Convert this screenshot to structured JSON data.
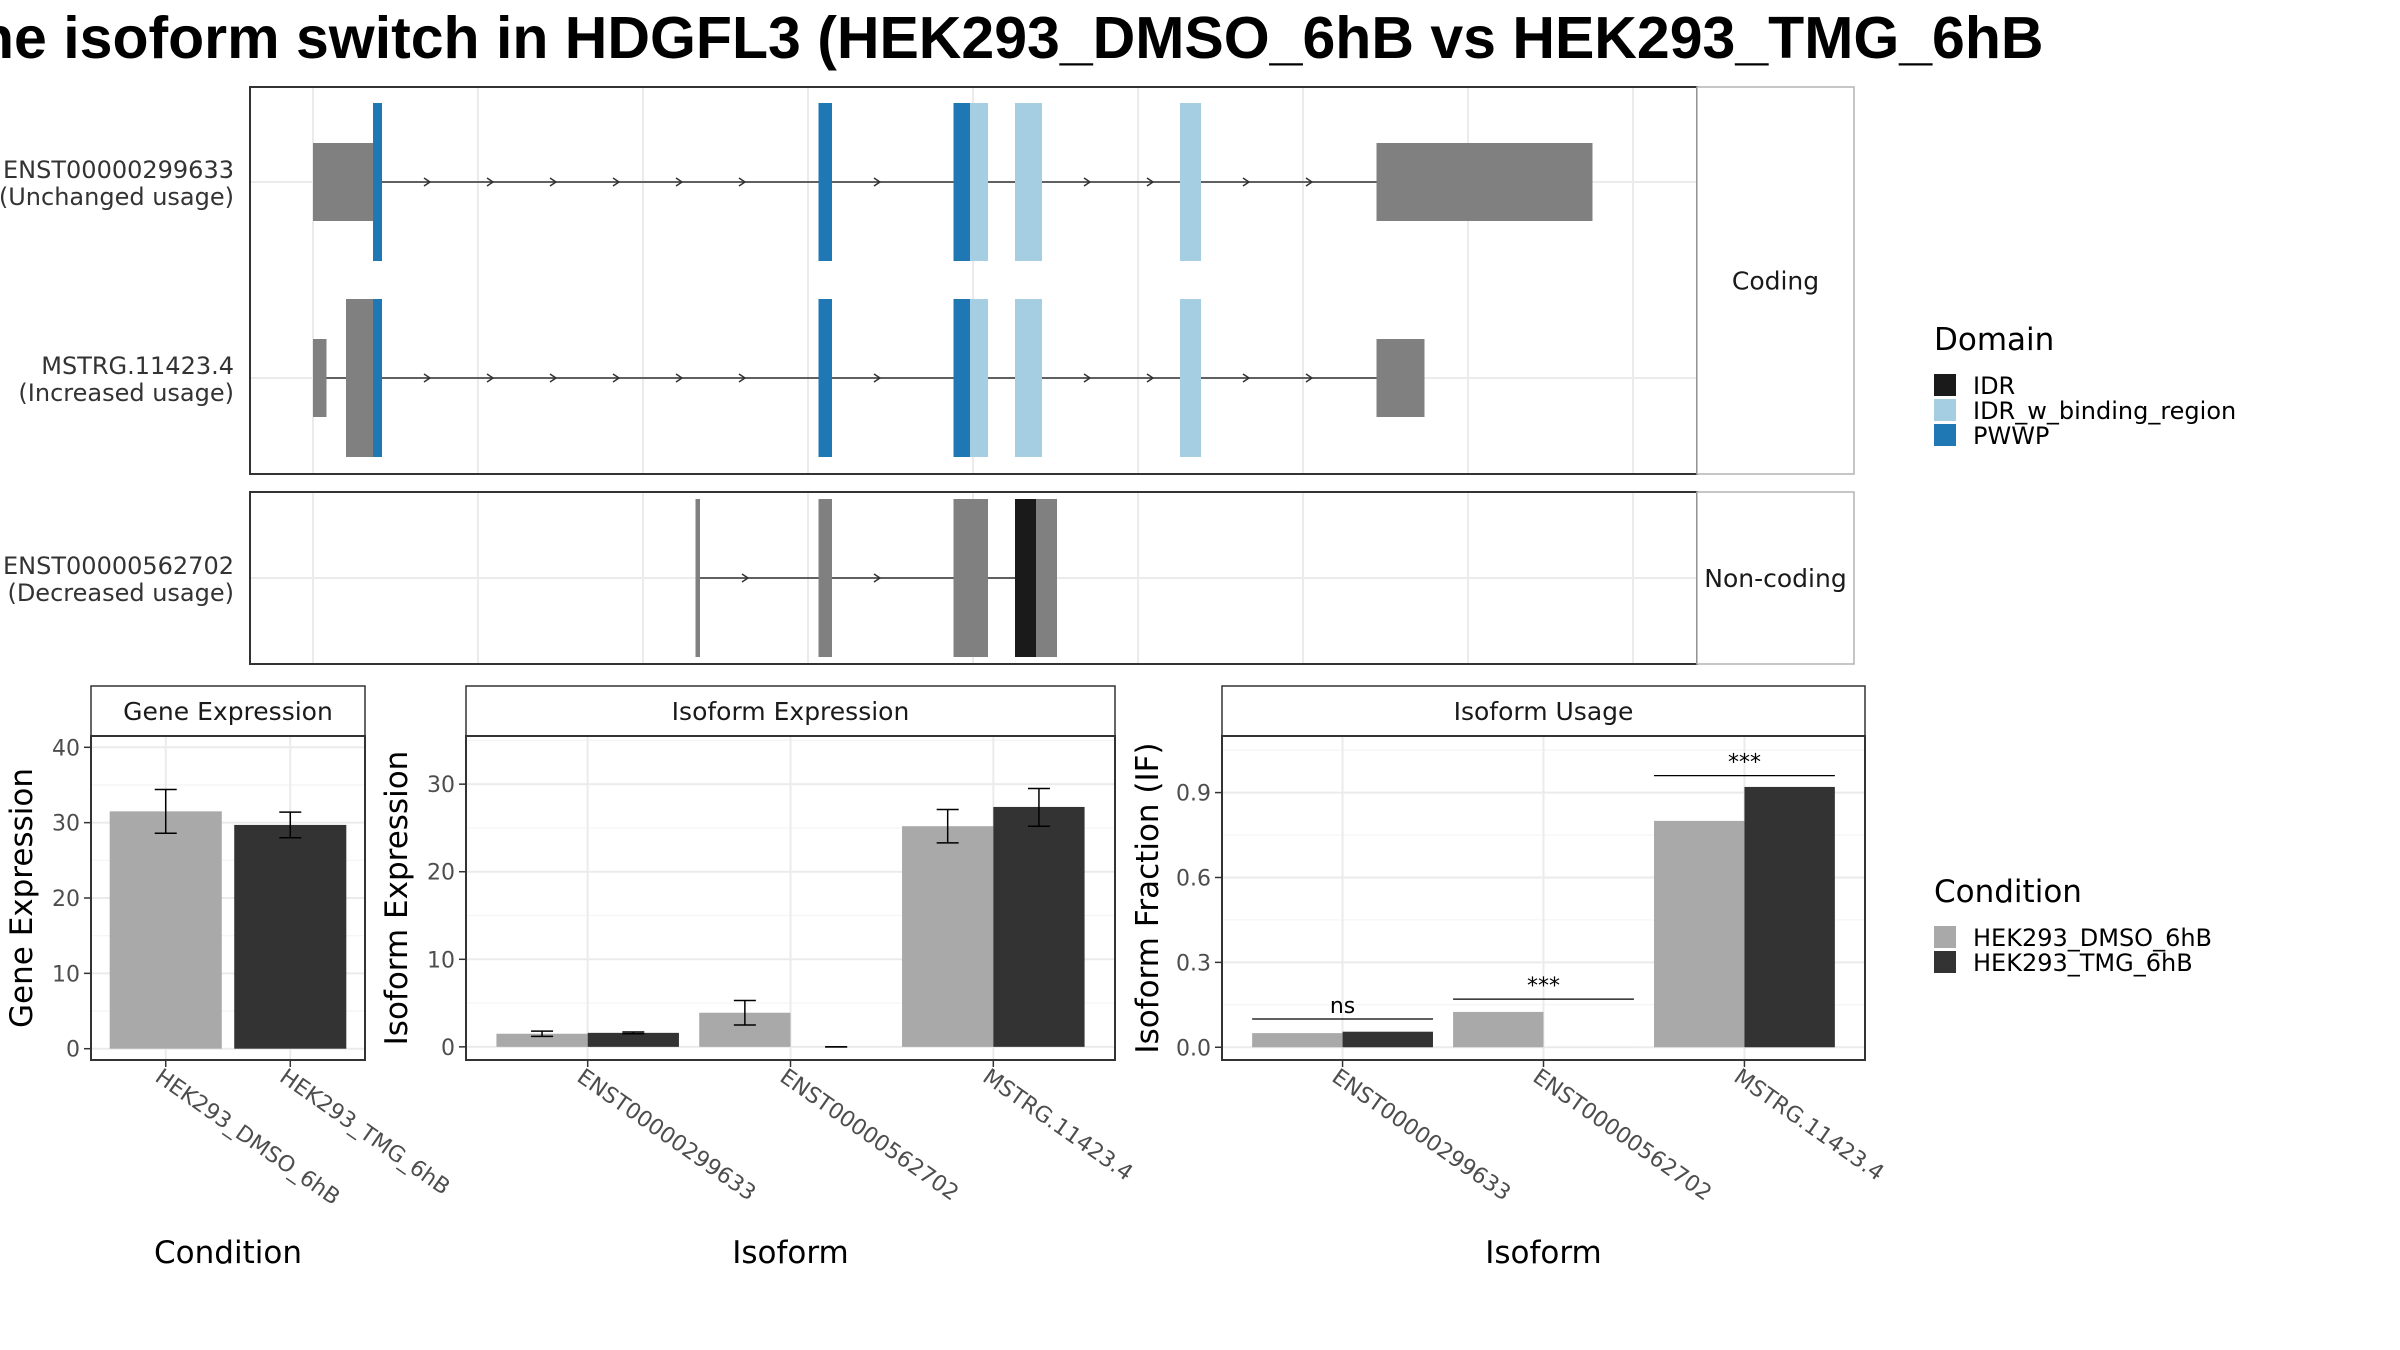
{
  "title": "ne isoform switch in HDGFL3 (HEK293_DMSO_6hB vs HEK293_TMG_6hB",
  "colors": {
    "exon": "#808080",
    "IDR": "#1a1a1a",
    "IDR_w_binding_region": "#a6cee3",
    "PWWP": "#1f78b4",
    "dmso": "#a9a9a9",
    "tmg": "#333333",
    "grid": "#ebebeb"
  },
  "legend_domain": {
    "title": "Domain",
    "items": [
      {
        "label": "IDR",
        "color": "#1a1a1a"
      },
      {
        "label": "IDR_w_binding_region",
        "color": "#a6cee3"
      },
      {
        "label": "PWWP",
        "color": "#1f78b4"
      }
    ]
  },
  "legend_condition": {
    "title": "Condition",
    "items": [
      {
        "label": "HEK293_DMSO_6hB",
        "color": "#a9a9a9"
      },
      {
        "label": "HEK293_TMG_6hB",
        "color": "#333333"
      }
    ]
  },
  "chart_data": [
    {
      "type": "gene_structure",
      "facets": [
        "Coding",
        "Non-coding"
      ],
      "transcripts": [
        {
          "id": "ENST00000299633",
          "status": "(Unchanged usage)",
          "facet": "Coding",
          "exons": [
            [
              0,
              40
            ],
            [
              43,
              46
            ],
            [
              337,
              346
            ],
            [
              427,
              450
            ],
            [
              468,
              486
            ],
            [
              578,
              592
            ],
            [
              709,
              853
            ]
          ],
          "domains": [
            {
              "name": "PWWP",
              "range": [
                40,
                46
              ]
            },
            {
              "name": "PWWP",
              "range": [
                337,
                346
              ]
            },
            {
              "name": "PWWP",
              "range": [
                427,
                438
              ]
            },
            {
              "name": "IDR_w_binding_region",
              "range": [
                438,
                450
              ]
            },
            {
              "name": "IDR_w_binding_region",
              "range": [
                468,
                486
              ]
            },
            {
              "name": "IDR_w_binding_region",
              "range": [
                578,
                592
              ]
            }
          ]
        },
        {
          "id": "MSTRG.11423.4",
          "status": "(Increased usage)",
          "facet": "Coding",
          "exons": [
            [
              0,
              9
            ],
            [
              22,
              46
            ],
            [
              337,
              346
            ],
            [
              427,
              450
            ],
            [
              468,
              486
            ],
            [
              578,
              592
            ],
            [
              709,
              741
            ]
          ],
          "domains": [
            {
              "name": "PWWP",
              "range": [
                40,
                46
              ]
            },
            {
              "name": "PWWP",
              "range": [
                337,
                346
              ]
            },
            {
              "name": "PWWP",
              "range": [
                427,
                438
              ]
            },
            {
              "name": "IDR_w_binding_region",
              "range": [
                438,
                450
              ]
            },
            {
              "name": "IDR_w_binding_region",
              "range": [
                468,
                486
              ]
            },
            {
              "name": "IDR_w_binding_region",
              "range": [
                578,
                592
              ]
            }
          ]
        },
        {
          "id": "ENST00000562702",
          "status": "(Decreased usage)",
          "facet": "Non-coding",
          "exons": [
            [
              255,
              258
            ],
            [
              337,
              346
            ],
            [
              427,
              450
            ],
            [
              468,
              496
            ]
          ],
          "domains": [
            {
              "name": "IDR",
              "range": [
                468,
                482
              ]
            }
          ]
        }
      ]
    },
    {
      "type": "bar",
      "title": "Gene Expression",
      "xlabel": "Condition",
      "ylabel": "Gene Expression",
      "ylim": [
        -1.5,
        41.5
      ],
      "yticks": [
        0,
        10,
        20,
        30,
        40
      ],
      "categories": [
        "HEK293_DMSO_6hB",
        "HEK293_TMG_6hB"
      ],
      "series": [
        {
          "name": "HEK293_DMSO_6hB",
          "values": [
            31.5,
            null
          ],
          "error": [
            [
              28.6,
              34.4
            ],
            null
          ]
        },
        {
          "name": "HEK293_TMG_6hB",
          "values": [
            null,
            29.7
          ],
          "error": [
            null,
            [
              28.0,
              31.4
            ]
          ]
        }
      ]
    },
    {
      "type": "bar",
      "title": "Isoform Expression",
      "xlabel": "Isoform",
      "ylabel": "Isoform Expression",
      "ylim": [
        -1.5,
        35.5
      ],
      "yticks": [
        0,
        10,
        20,
        30
      ],
      "categories": [
        "ENST00000299633",
        "ENST00000562702",
        "MSTRG.11423.4"
      ],
      "series": [
        {
          "name": "HEK293_DMSO_6hB",
          "values": [
            1.5,
            3.9,
            25.2
          ],
          "error": [
            [
              1.2,
              1.8
            ],
            [
              2.5,
              5.3
            ],
            [
              23.3,
              27.1
            ]
          ]
        },
        {
          "name": "HEK293_TMG_6hB",
          "values": [
            1.6,
            0.0,
            27.4
          ],
          "error": [
            [
              1.5,
              1.7
            ],
            [
              0.0,
              0.0
            ],
            [
              25.2,
              29.5
            ]
          ]
        }
      ]
    },
    {
      "type": "bar",
      "title": "Isoform Usage",
      "xlabel": "Isoform",
      "ylabel": "Isoform Fraction (IF)",
      "ylim": [
        -0.045,
        1.1
      ],
      "yticks": [
        "0.0",
        "0.3",
        "0.6",
        "0.9"
      ],
      "ytick_values": [
        0,
        0.3,
        0.6,
        0.9
      ],
      "categories": [
        "ENST00000299633",
        "ENST00000562702",
        "MSTRG.11423.4"
      ],
      "series": [
        {
          "name": "HEK293_DMSO_6hB",
          "values": [
            0.05,
            0.125,
            0.8
          ]
        },
        {
          "name": "HEK293_TMG_6hB",
          "values": [
            0.055,
            0.0,
            0.92
          ]
        }
      ],
      "significance": [
        {
          "category": "ENST00000299633",
          "label": "ns",
          "y": 0.1
        },
        {
          "category": "ENST00000562702",
          "label": "***",
          "y": 0.17
        },
        {
          "category": "MSTRG.11423.4",
          "label": "***",
          "y": 0.96
        }
      ]
    }
  ]
}
